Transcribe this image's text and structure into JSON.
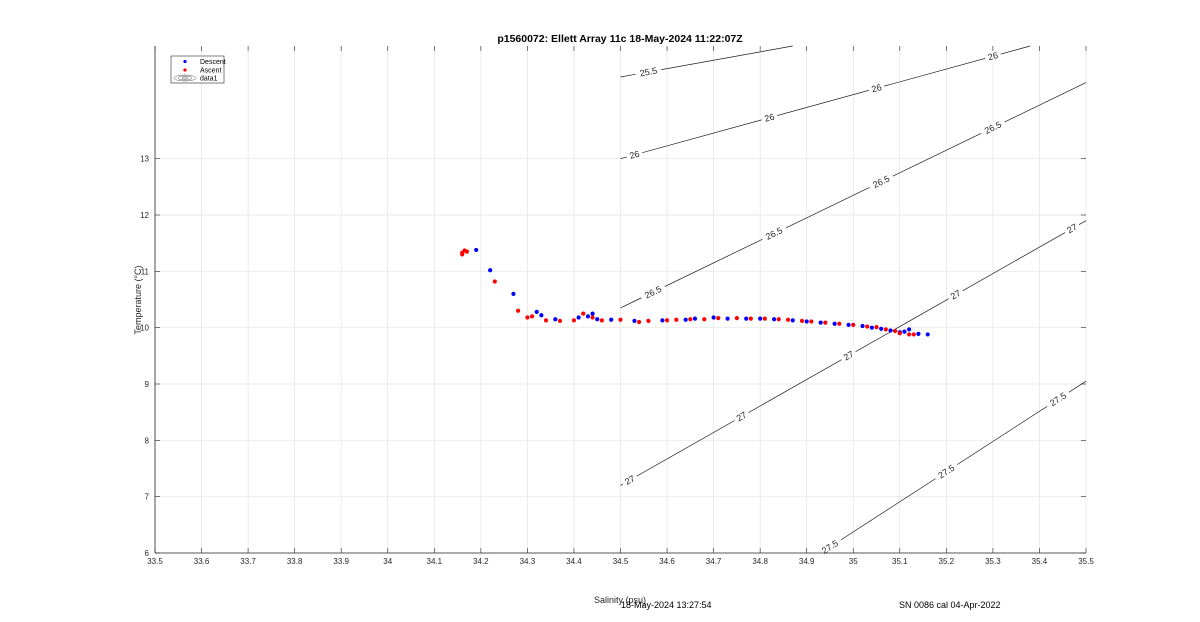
{
  "chart_data": {
    "type": "scatter",
    "title": "p1560072: Ellett Array 11c 18-May-2024 11:22:07Z",
    "xlabel": "Salinity (psu)",
    "ylabel": "Temperature (°C)",
    "xlim": [
      33.5,
      35.5
    ],
    "ylim": [
      6,
      15.0
    ],
    "xticks": [
      33.5,
      33.6,
      33.7,
      33.8,
      33.9,
      34,
      34.1,
      34.2,
      34.3,
      34.4,
      34.5,
      34.6,
      34.7,
      34.8,
      34.9,
      35,
      35.1,
      35.2,
      35.3,
      35.4,
      35.5
    ],
    "yticks": [
      6,
      7,
      8,
      9,
      10,
      11,
      12,
      13
    ],
    "grid": true,
    "legend_position": "top-left",
    "series": [
      {
        "name": "Descent",
        "color": "#0000ff",
        "points": [
          [
            34.19,
            11.38
          ],
          [
            34.22,
            11.02
          ],
          [
            34.27,
            10.6
          ],
          [
            34.32,
            10.28
          ],
          [
            34.33,
            10.22
          ],
          [
            34.36,
            10.15
          ],
          [
            34.41,
            10.18
          ],
          [
            34.43,
            10.2
          ],
          [
            34.44,
            10.25
          ],
          [
            34.45,
            10.15
          ],
          [
            34.48,
            10.14
          ],
          [
            34.53,
            10.12
          ],
          [
            34.59,
            10.13
          ],
          [
            34.64,
            10.14
          ],
          [
            34.66,
            10.16
          ],
          [
            34.7,
            10.18
          ],
          [
            34.73,
            10.16
          ],
          [
            34.77,
            10.16
          ],
          [
            34.8,
            10.16
          ],
          [
            34.83,
            10.15
          ],
          [
            34.87,
            10.13
          ],
          [
            34.9,
            10.11
          ],
          [
            34.93,
            10.09
          ],
          [
            34.96,
            10.07
          ],
          [
            34.99,
            10.05
          ],
          [
            35.02,
            10.03
          ],
          [
            35.04,
            10.0
          ],
          [
            35.06,
            9.98
          ],
          [
            35.08,
            9.95
          ],
          [
            35.1,
            9.92
          ],
          [
            35.11,
            9.93
          ],
          [
            35.12,
            9.97
          ],
          [
            35.14,
            9.89
          ],
          [
            35.16,
            9.88
          ]
        ]
      },
      {
        "name": "Ascent",
        "color": "#ff0000",
        "points": [
          [
            34.16,
            11.3
          ],
          [
            34.16,
            11.33
          ],
          [
            34.17,
            11.35
          ],
          [
            34.165,
            11.37
          ],
          [
            34.23,
            10.82
          ],
          [
            34.28,
            10.3
          ],
          [
            34.3,
            10.18
          ],
          [
            34.31,
            10.2
          ],
          [
            34.34,
            10.13
          ],
          [
            34.37,
            10.12
          ],
          [
            34.4,
            10.13
          ],
          [
            34.42,
            10.25
          ],
          [
            34.44,
            10.18
          ],
          [
            34.46,
            10.13
          ],
          [
            34.5,
            10.14
          ],
          [
            34.54,
            10.1
          ],
          [
            34.56,
            10.12
          ],
          [
            34.6,
            10.13
          ],
          [
            34.62,
            10.14
          ],
          [
            34.65,
            10.15
          ],
          [
            34.68,
            10.15
          ],
          [
            34.71,
            10.17
          ],
          [
            34.75,
            10.17
          ],
          [
            34.78,
            10.16
          ],
          [
            34.81,
            10.16
          ],
          [
            34.84,
            10.15
          ],
          [
            34.86,
            10.14
          ],
          [
            34.89,
            10.12
          ],
          [
            34.91,
            10.11
          ],
          [
            34.94,
            10.09
          ],
          [
            34.97,
            10.07
          ],
          [
            35.0,
            10.05
          ],
          [
            35.03,
            10.02
          ],
          [
            35.05,
            10.01
          ],
          [
            35.07,
            9.97
          ],
          [
            35.09,
            9.94
          ],
          [
            35.1,
            9.9
          ],
          [
            35.12,
            9.88
          ],
          [
            35.13,
            9.88
          ]
        ]
      }
    ],
    "isopycnals": [
      {
        "label": "25.5",
        "from": [
          34.5,
          14.45
        ],
        "to": [
          34.87,
          15.0
        ],
        "labels_at": [
          34.56
        ]
      },
      {
        "label": "26",
        "from": [
          34.5,
          13.0
        ],
        "to": [
          35.38,
          15.0
        ],
        "labels_at": [
          34.53,
          34.82,
          35.05,
          35.3
        ]
      },
      {
        "label": "26.5",
        "from": [
          34.5,
          10.35
        ],
        "to": [
          35.5,
          14.35
        ],
        "labels_at": [
          34.57,
          34.83,
          35.06,
          35.3
        ]
      },
      {
        "label": "27",
        "from": [
          34.5,
          7.2
        ],
        "to": [
          35.5,
          11.9
        ],
        "labels_at": [
          34.52,
          34.76,
          34.99,
          35.22,
          35.47
        ]
      },
      {
        "label": "27.5",
        "from": [
          34.93,
          6.0
        ],
        "to": [
          35.5,
          9.05
        ],
        "labels_at": [
          34.95,
          35.2,
          35.44
        ]
      }
    ]
  },
  "legend": {
    "descent_label": "Descent",
    "ascent_label": "Ascent",
    "contour_label": "data1"
  },
  "footer": {
    "timestamp": "18-May-2024 13:27:54",
    "sensor": "SN 0086 cal 04-Apr-2022"
  }
}
